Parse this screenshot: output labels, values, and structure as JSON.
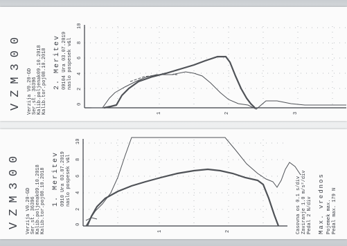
{
  "top_strip": {
    "brand": "VZM300",
    "header_lines": [
      "Verzija V0.20-GD",
      "Ser.st. 36396",
      "Kalib.poljenak09.10.2018",
      "Kalib.tor.poj08.10.2018"
    ],
    "record_title": "2. Meritev",
    "record_lines": [
      "09104 Ura 03.07.2019",
      "naslo pospesek v&l"
    ],
    "y_ticks": [
      "10",
      "8",
      "6",
      "4",
      "2",
      "0"
    ],
    "x_ticks": [
      "1",
      "2",
      "3"
    ]
  },
  "bottom_strip": {
    "brand": "VZM300",
    "header_lines": [
      "Verzija V0.20-GD",
      "Ser.st. 36396",
      "Kalib.poljenak09.10.2018",
      "Kalib.tor.poj08.10.2018"
    ],
    "record_title": "1. Meritev",
    "record_lines": [
      "0910 Ura 03.07.2019",
      "naslo pospesek v&l"
    ],
    "y_ticks": [
      "10",
      "8",
      "6",
      "4",
      "2",
      "0"
    ],
    "x_ticks": [
      "1",
      "2"
    ],
    "footer_lines": [
      "Casovna os  0.1 s/div",
      "Zaviranje   1.0 m/s²/div",
      "Pedal       2 N/div",
      "Max. vrednos",
      "Pojemek max.",
      "Pedal max.   179 N"
    ]
  },
  "colors": {
    "ink": "#3a3d44",
    "trace": "#4f5257",
    "grid": "#b9bcc0"
  }
}
